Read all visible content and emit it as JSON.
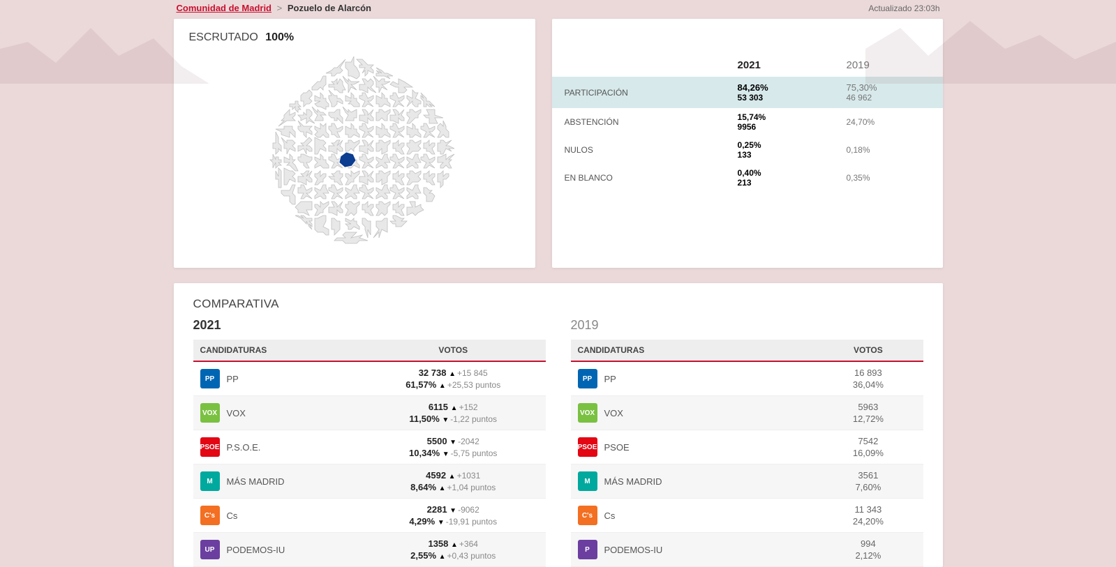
{
  "breadcrumb": {
    "parent": "Comunidad de Madrid",
    "sep": ">",
    "child": "Pozuelo de Alarcón"
  },
  "updated": "Actualizado 23:03h",
  "scrutado": {
    "label": "ESCRUTADO",
    "value": "100%"
  },
  "map": {
    "highlight_color": "#0b3d91",
    "region_fill": "#e8e8e8",
    "region_stroke": "#bfbfbf"
  },
  "stats": {
    "head": {
      "y2021": "2021",
      "y2019": "2019"
    },
    "rows": [
      {
        "label": "PARTICIPACIÓN",
        "hl": true,
        "y2021_top": "84,26%",
        "y2021_bot": "53 303",
        "y2019_top": "75,30%",
        "y2019_bot": "46 962"
      },
      {
        "label": "ABSTENCIÓN",
        "y2021_top": "15,74%",
        "y2021_bot": "9956",
        "y2019_top": "24,70%",
        "y2019_bot": ""
      },
      {
        "label": "NULOS",
        "y2021_top": "0,25%",
        "y2021_bot": "133",
        "y2019_top": "0,18%",
        "y2019_bot": ""
      },
      {
        "label": "EN BLANCO",
        "y2021_top": "0,40%",
        "y2021_bot": "213",
        "y2019_top": "0,35%",
        "y2019_bot": ""
      }
    ]
  },
  "comparativa": {
    "title": "COMPARATIVA",
    "headers": {
      "candidaturas": "CANDIDATURAS",
      "votos": "VOTOS"
    },
    "y2021": {
      "title": "2021",
      "rows": [
        {
          "badge_bg": "#0066b3",
          "badge_txt": "PP",
          "name": "PP",
          "votes": "32 738",
          "votes_delta": "+15 845",
          "votes_dir": "up",
          "pct": "61,57%",
          "pct_delta": "+25,53 puntos",
          "pct_dir": "up"
        },
        {
          "badge_bg": "#7ac142",
          "badge_txt": "VOX",
          "name": "VOX",
          "votes": "6115",
          "votes_delta": "+152",
          "votes_dir": "up",
          "pct": "11,50%",
          "pct_delta": "-1,22 puntos",
          "pct_dir": "down"
        },
        {
          "badge_bg": "#e30613",
          "badge_txt": "PSOE",
          "name": "P.S.O.E.",
          "votes": "5500",
          "votes_delta": "-2042",
          "votes_dir": "down",
          "pct": "10,34%",
          "pct_delta": "-5,75 puntos",
          "pct_dir": "down"
        },
        {
          "badge_bg": "#00a99d",
          "badge_txt": "M",
          "name": "MÁS MADRID",
          "votes": "4592",
          "votes_delta": "+1031",
          "votes_dir": "up",
          "pct": "8,64%",
          "pct_delta": "+1,04 puntos",
          "pct_dir": "up"
        },
        {
          "badge_bg": "#f36f21",
          "badge_txt": "C's",
          "name": "Cs",
          "votes": "2281",
          "votes_delta": "-9062",
          "votes_dir": "down",
          "pct": "4,29%",
          "pct_delta": "-19,91 puntos",
          "pct_dir": "down"
        },
        {
          "badge_bg": "#6b3fa0",
          "badge_txt": "UP",
          "name": "PODEMOS-IU",
          "votes": "1358",
          "votes_delta": "+364",
          "votes_dir": "up",
          "pct": "2,55%",
          "pct_delta": "+0,43 puntos",
          "pct_dir": "up"
        }
      ]
    },
    "y2019": {
      "title": "2019",
      "rows": [
        {
          "badge_bg": "#0066b3",
          "badge_txt": "PP",
          "name": "PP",
          "votes": "16 893",
          "pct": "36,04%"
        },
        {
          "badge_bg": "#7ac142",
          "badge_txt": "VOX",
          "name": "VOX",
          "votes": "5963",
          "pct": "12,72%"
        },
        {
          "badge_bg": "#e30613",
          "badge_txt": "PSOE",
          "name": "PSOE",
          "votes": "7542",
          "pct": "16,09%"
        },
        {
          "badge_bg": "#00a99d",
          "badge_txt": "M",
          "name": "MÁS MADRID",
          "votes": "3561",
          "pct": "7,60%"
        },
        {
          "badge_bg": "#f36f21",
          "badge_txt": "C's",
          "name": "Cs",
          "votes": "11 343",
          "pct": "24,20%"
        },
        {
          "badge_bg": "#6b3fa0",
          "badge_txt": "P",
          "name": "PODEMOS-IU",
          "votes": "994",
          "pct": "2,12%"
        }
      ]
    }
  }
}
